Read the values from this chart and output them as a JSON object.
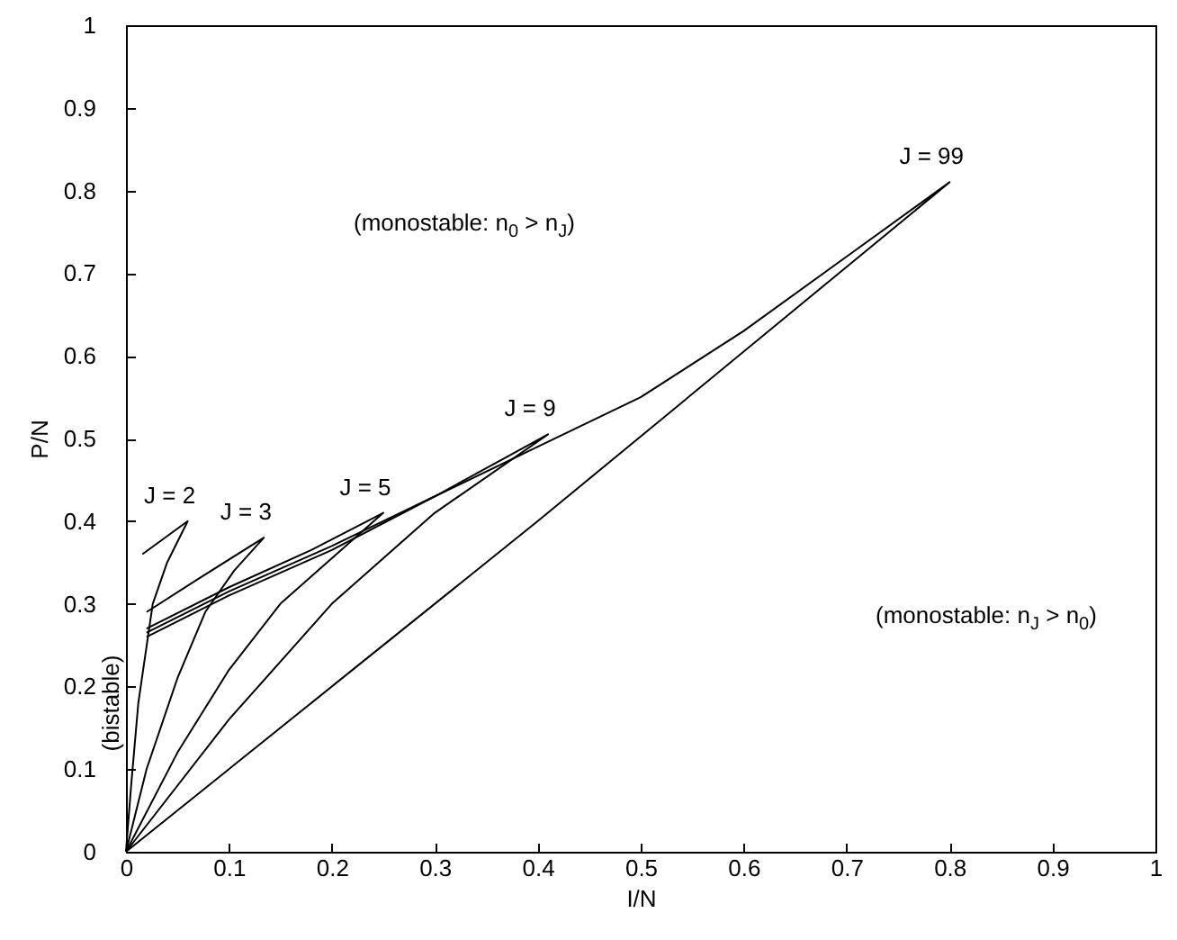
{
  "chart_data": {
    "type": "line",
    "xlabel": "I/N",
    "ylabel": "P/N",
    "xlim": [
      0,
      1
    ],
    "ylim": [
      0,
      1
    ],
    "xticks": [
      0,
      0.1,
      0.2,
      0.3,
      0.4,
      0.5,
      0.6,
      0.7,
      0.8,
      0.9,
      1
    ],
    "yticks": [
      0,
      0.1,
      0.2,
      0.3,
      0.4,
      0.5,
      0.6,
      0.7,
      0.8,
      0.9,
      1
    ],
    "grid": false,
    "marker": "none",
    "line_style": "solid",
    "annotations": [
      "(monostable: n$_{0}$ > n$_{J}$)",
      "(monostable: n$_{J}$ > n$_{0}$)",
      "(bistable)"
    ],
    "series": [
      {
        "name": "J = 2",
        "color": "#000000",
        "x": [
          0.016,
          0.06,
          0.04,
          0.026,
          0.012,
          0.005,
          0
        ],
        "values": [
          0.36,
          0.4,
          0.35,
          0.3,
          0.18,
          0.08,
          0
        ]
      },
      {
        "name": "J = 3",
        "color": "#000000",
        "x": [
          0.02,
          0.07,
          0.134,
          0.105,
          0.077,
          0.05,
          0.02,
          0
        ],
        "values": [
          0.29,
          0.33,
          0.38,
          0.34,
          0.29,
          0.21,
          0.1,
          0
        ]
      },
      {
        "name": "J = 5",
        "color": "#000000",
        "x": [
          0.02,
          0.1,
          0.18,
          0.25,
          0.2,
          0.15,
          0.1,
          0.05,
          0
        ],
        "values": [
          0.27,
          0.32,
          0.365,
          0.41,
          0.355,
          0.3,
          0.22,
          0.12,
          0
        ]
      },
      {
        "name": "J = 9",
        "color": "#000000",
        "x": [
          0.02,
          0.1,
          0.2,
          0.3,
          0.41,
          0.3,
          0.2,
          0.1,
          0
        ],
        "values": [
          0.265,
          0.315,
          0.37,
          0.43,
          0.505,
          0.41,
          0.3,
          0.16,
          0
        ]
      },
      {
        "name": "J = 99",
        "color": "#000000",
        "x": [
          0.02,
          0.1,
          0.2,
          0.3,
          0.4,
          0.5,
          0.6,
          0.7,
          0.8,
          0.68,
          0.4,
          0.2,
          0
        ],
        "values": [
          0.26,
          0.31,
          0.365,
          0.43,
          0.49,
          0.55,
          0.63,
          0.72,
          0.81,
          0.687,
          0.4,
          0.2,
          0
        ]
      }
    ]
  }
}
